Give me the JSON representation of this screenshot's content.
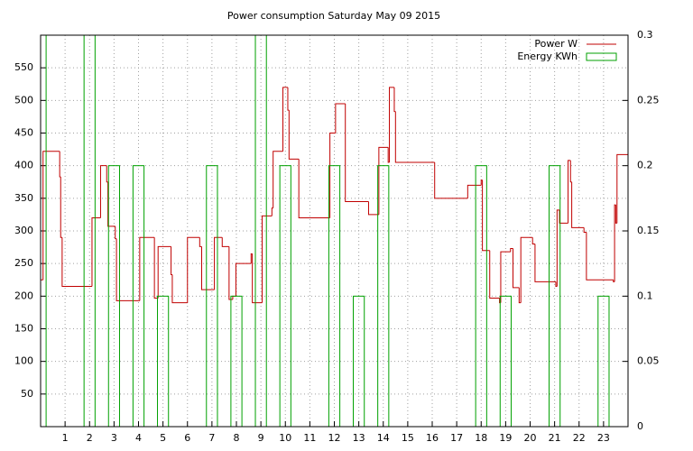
{
  "chart_data": {
    "type": "step",
    "title": "Power consumption Saturday May 09 2015",
    "xlim": [
      0,
      24
    ],
    "xticks": [
      1,
      2,
      3,
      4,
      5,
      6,
      7,
      8,
      9,
      10,
      11,
      12,
      13,
      14,
      15,
      16,
      17,
      18,
      19,
      20,
      21,
      22,
      23
    ],
    "ylim": [
      0,
      600
    ],
    "yticks": [
      50,
      100,
      150,
      200,
      250,
      300,
      350,
      400,
      450,
      500,
      550
    ],
    "y2lim": [
      0,
      0.3
    ],
    "y2ticks": [
      0,
      0.05,
      0.1,
      0.15,
      0.2,
      0.25,
      0.3
    ],
    "grid": true,
    "legend": "top-right",
    "series": [
      {
        "name": "Power W",
        "color": "#c00000",
        "kind": "step",
        "x": [
          0,
          0.1,
          0.78,
          0.82,
          0.88,
          2.1,
          2.45,
          2.7,
          2.75,
          3.05,
          3.1,
          4.05,
          4.65,
          4.8,
          5.33,
          5.38,
          6.0,
          6.5,
          6.58,
          7.1,
          7.42,
          7.7,
          7.85,
          7.98,
          8.6,
          8.65,
          9.05,
          9.45,
          9.5,
          9.9,
          10.1,
          10.15,
          10.55,
          11.82,
          12.05,
          12.45,
          13.4,
          13.82,
          14.2,
          14.25,
          14.45,
          14.5,
          16.1,
          17.45,
          18.0,
          18.05,
          18.35,
          18.75,
          18.8,
          19.2,
          19.3,
          19.55,
          19.62,
          20.1,
          20.2,
          21.05,
          21.1,
          21.2,
          21.55,
          21.65,
          21.7,
          22.2,
          22.3,
          23.4,
          23.45,
          23.5,
          23.55,
          24
        ],
        "values": [
          225,
          422,
          383,
          290,
          215,
          320,
          400,
          375,
          307,
          288,
          193,
          290,
          197,
          276,
          233,
          190,
          290,
          276,
          210,
          290,
          276,
          195,
          200,
          250,
          265,
          190,
          323,
          335,
          422,
          520,
          485,
          410,
          320,
          450,
          495,
          345,
          325,
          428,
          405,
          520,
          483,
          405,
          350,
          370,
          378,
          270,
          197,
          190,
          268,
          273,
          213,
          190,
          290,
          280,
          222,
          215,
          332,
          312,
          408,
          375,
          305,
          298,
          225,
          222,
          340,
          312,
          417,
          417
        ]
      },
      {
        "name": "Energy KWh",
        "color": "#00a000",
        "kind": "box",
        "axis": "y2",
        "x": [
          0,
          2,
          3,
          4,
          5,
          7,
          8,
          9,
          10,
          12,
          13,
          14,
          18,
          19,
          21,
          23
        ],
        "values": [
          0.3,
          0.3,
          0.2,
          0.2,
          0.1,
          0.2,
          0.1,
          0.3,
          0.2,
          0.2,
          0.1,
          0.2,
          0.2,
          0.1,
          0.2,
          0.1
        ]
      }
    ]
  }
}
